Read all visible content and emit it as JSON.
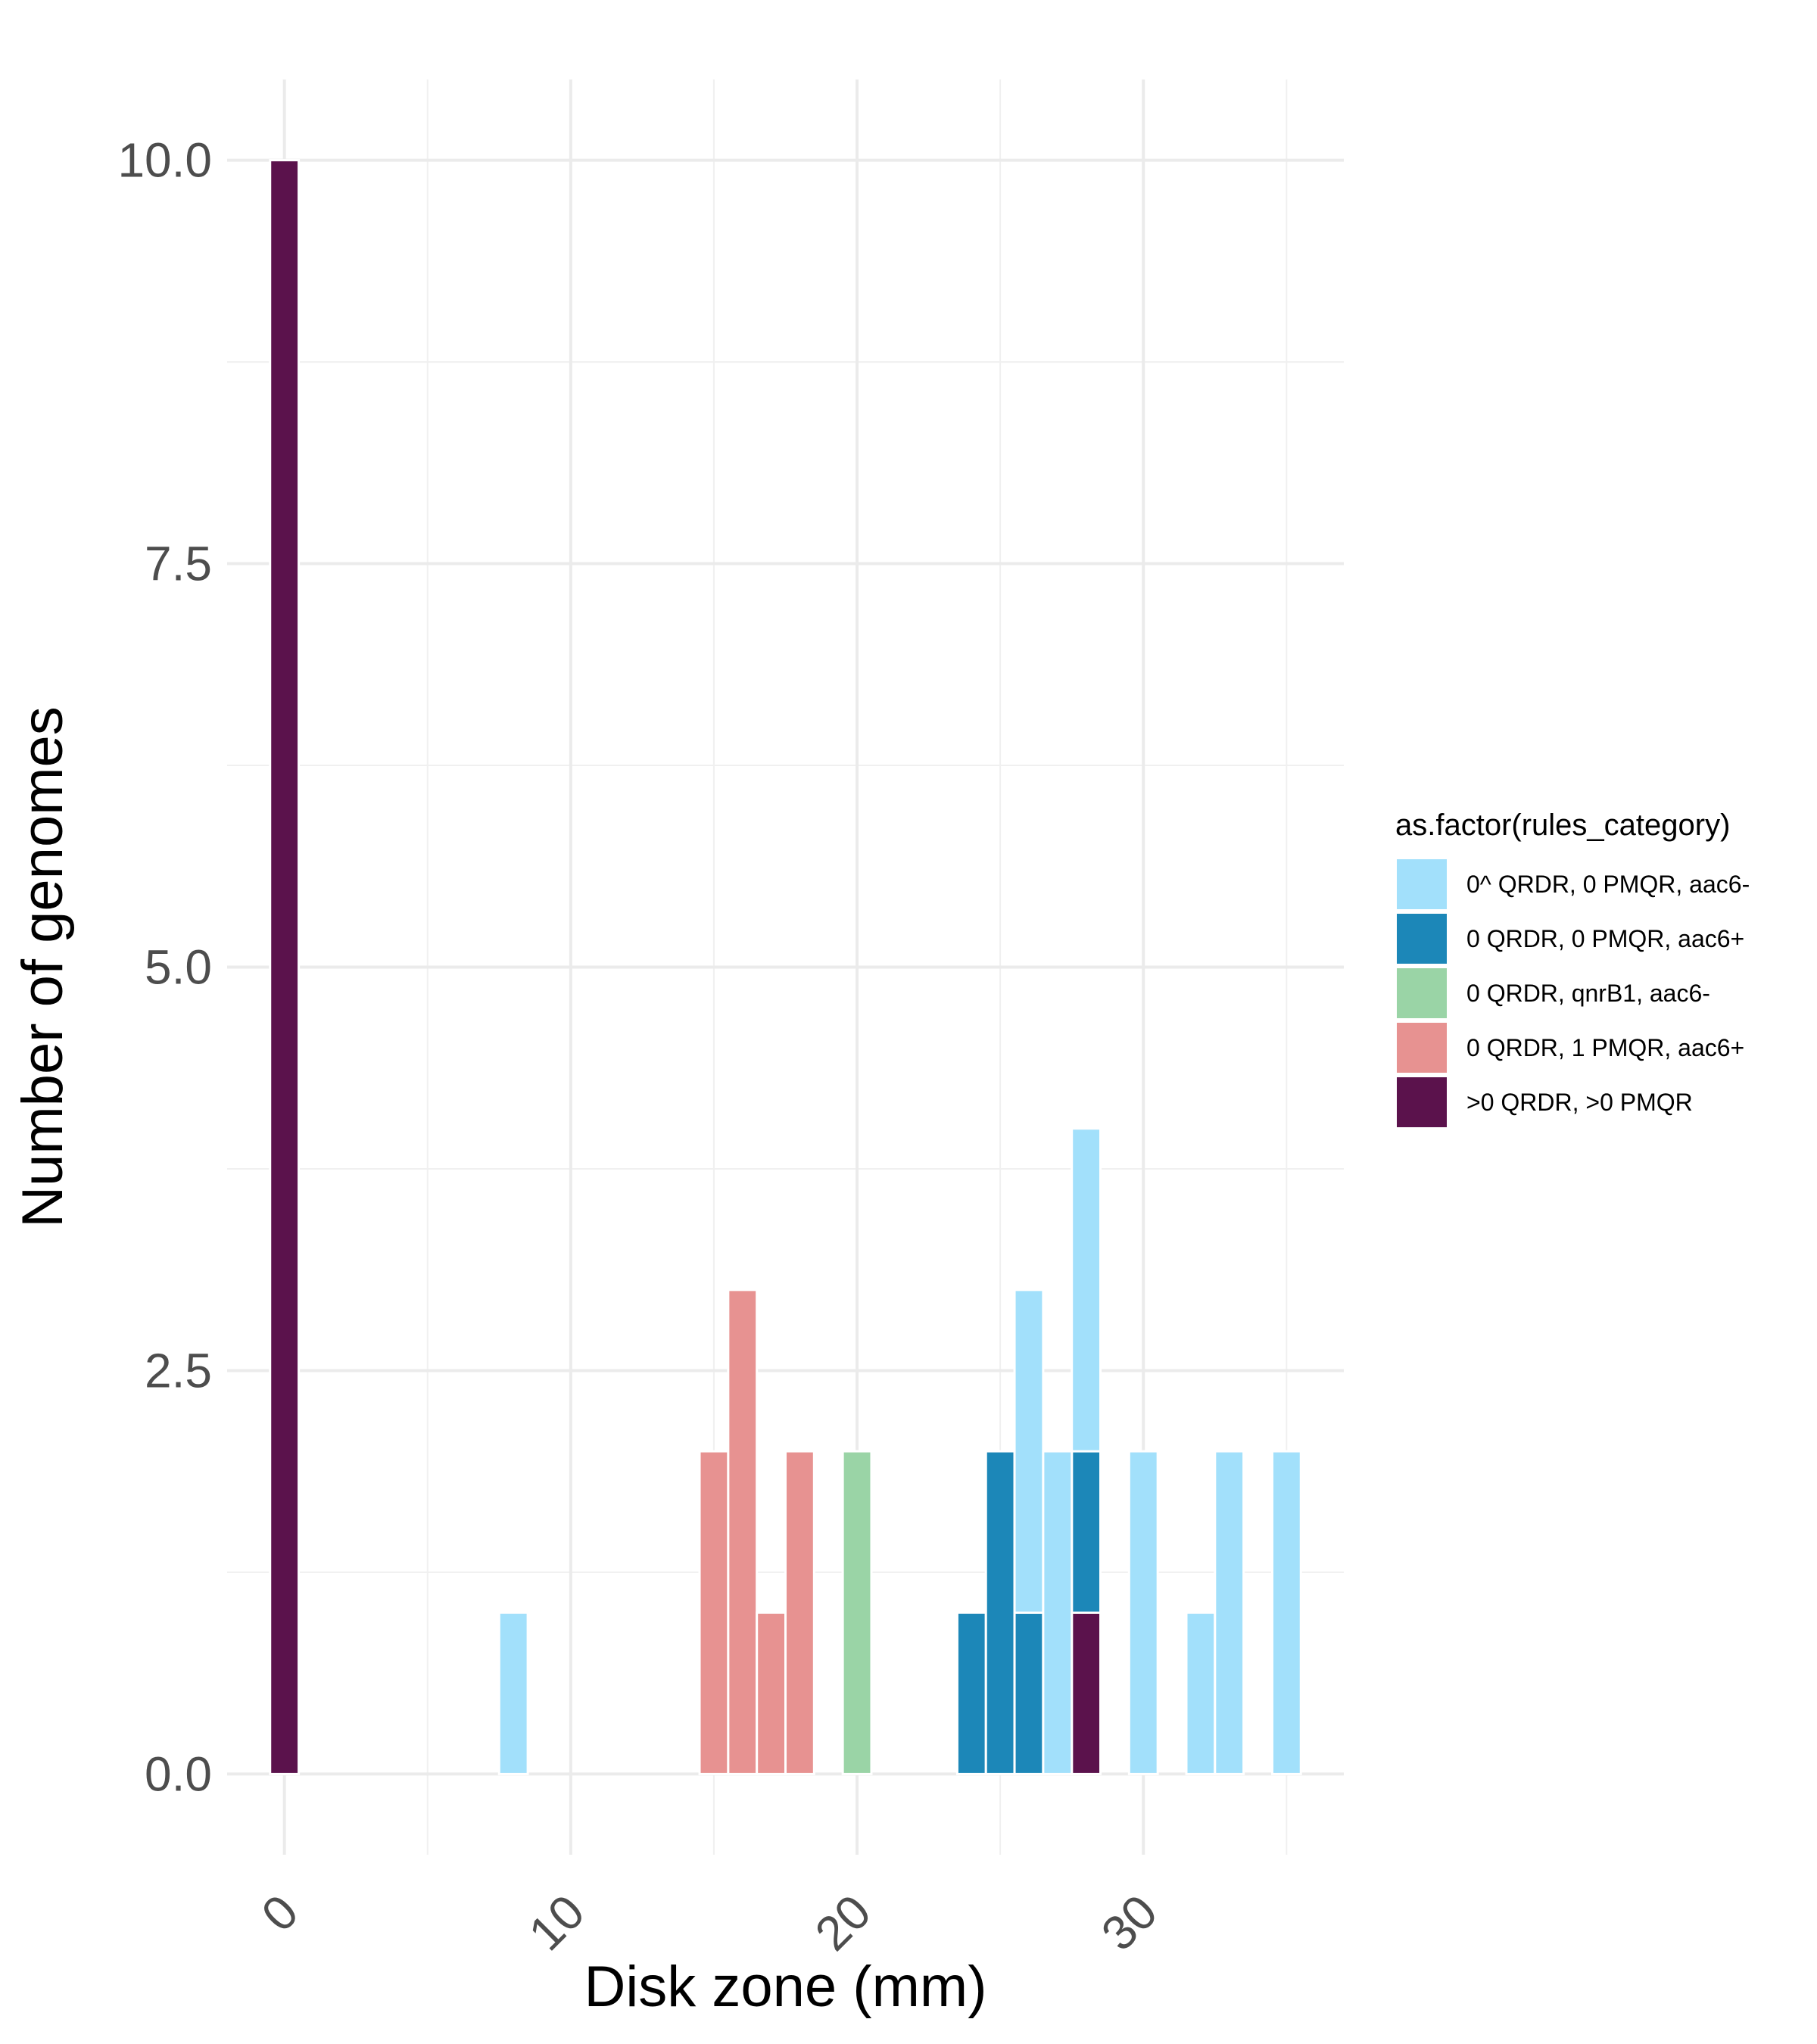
{
  "chart_data": {
    "type": "bar",
    "stacked": true,
    "title": "",
    "xlabel": "Disk zone (mm)",
    "ylabel": "Number of genomes",
    "xlim": [
      -2,
      37
    ],
    "ylim": [
      -0.5,
      10.5
    ],
    "x_ticks": [
      0,
      10,
      20,
      30
    ],
    "x_tick_labels": [
      "0",
      "10",
      "20",
      "30"
    ],
    "y_ticks": [
      0,
      2.5,
      5,
      7.5,
      10
    ],
    "y_tick_labels": [
      "0.0",
      "2.5",
      "5.0",
      "7.5",
      "10.0"
    ],
    "x_tick_rotation_deg": 45,
    "grid": true,
    "legend": {
      "title": "as.factor(rules_category)",
      "position": "right"
    },
    "series": [
      {
        "name": "0^ QRDR, 0 PMQR, aac6-",
        "color": "#a2e0fb",
        "points": [
          [
            8,
            1
          ],
          [
            26,
            2
          ],
          [
            27,
            2
          ],
          [
            28,
            2
          ],
          [
            30,
            2
          ],
          [
            32,
            1
          ],
          [
            33,
            2
          ],
          [
            35,
            2
          ]
        ]
      },
      {
        "name": "0 QRDR, 0 PMQR, aac6+",
        "color": "#1c87b8",
        "points": [
          [
            24,
            1
          ],
          [
            25,
            2
          ],
          [
            26,
            1
          ],
          [
            28,
            1
          ]
        ]
      },
      {
        "name": "0 QRDR, qnrB1, aac6-",
        "color": "#9ad4a6",
        "points": [
          [
            20,
            2
          ]
        ]
      },
      {
        "name": "0 QRDR, 1 PMQR, aac6+",
        "color": "#e79291",
        "points": [
          [
            15,
            2
          ],
          [
            16,
            3
          ],
          [
            17,
            1
          ],
          [
            18,
            2
          ]
        ]
      },
      {
        "name": ">0 QRDR, >0 PMQR",
        "color": "#5b124c",
        "points": [
          [
            0,
            10
          ],
          [
            28,
            1
          ]
        ]
      }
    ]
  }
}
